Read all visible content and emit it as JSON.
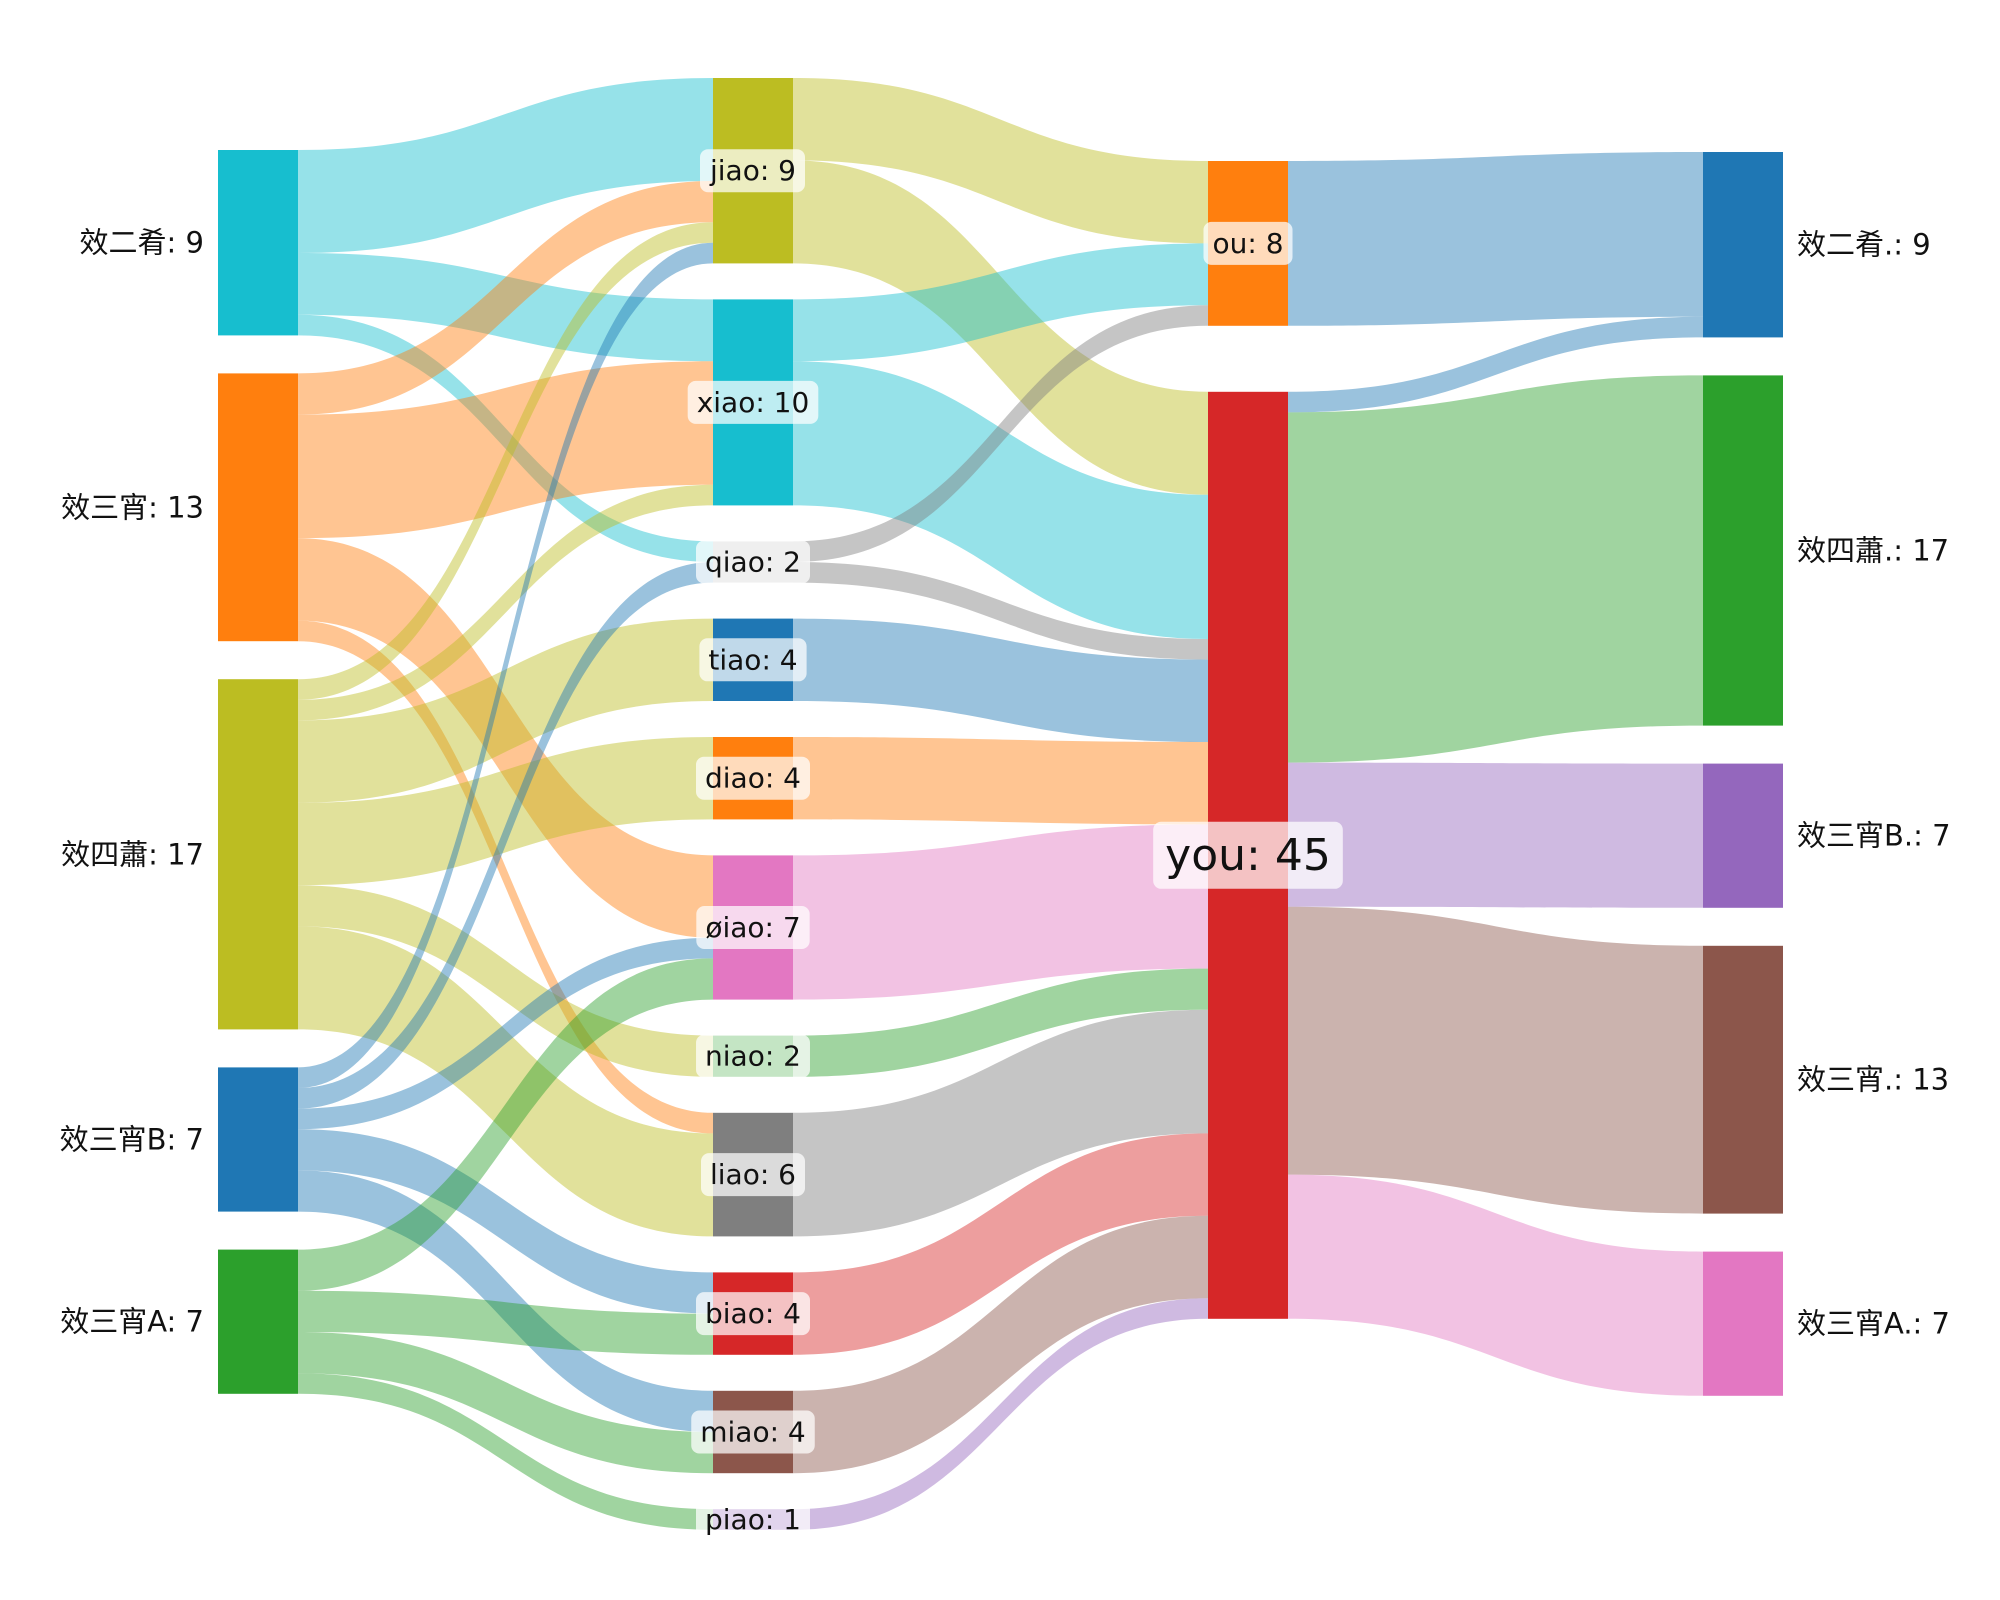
{
  "chart_data": {
    "type": "sankey",
    "title": "",
    "levels": [
      [
        "效二肴",
        "效三宵",
        "效四蕭",
        "效三宵B",
        "效三宵A"
      ],
      [
        "jiao",
        "xiao",
        "qiao",
        "tiao",
        "diao",
        "øiao",
        "niao",
        "liao",
        "biao",
        "miao",
        "piao"
      ],
      [
        "ou",
        "you"
      ],
      [
        "效二肴.",
        "效四蕭.",
        "效三宵B.",
        "效三宵.",
        "效三宵A."
      ]
    ],
    "nodes": [
      {
        "id": "效二肴",
        "label": "效二肴: 9",
        "value": 9,
        "color": "#17becf"
      },
      {
        "id": "效三宵",
        "label": "效三宵: 13",
        "value": 13,
        "color": "#ff7f0e"
      },
      {
        "id": "效四蕭",
        "label": "效四蕭: 17",
        "value": 17,
        "color": "#bcbd22"
      },
      {
        "id": "效三宵B",
        "label": "效三宵B: 7",
        "value": 7,
        "color": "#1f77b4"
      },
      {
        "id": "效三宵A",
        "label": "效三宵A: 7",
        "value": 7,
        "color": "#2ca02c"
      },
      {
        "id": "jiao",
        "label": "jiao: 9",
        "value": 9,
        "color": "#bcbd22"
      },
      {
        "id": "xiao",
        "label": "xiao: 10",
        "value": 10,
        "color": "#17becf"
      },
      {
        "id": "qiao",
        "label": "qiao: 2",
        "value": 2,
        "color": "#c7c7c7"
      },
      {
        "id": "tiao",
        "label": "tiao: 4",
        "value": 4,
        "color": "#1f77b4"
      },
      {
        "id": "diao",
        "label": "diao: 4",
        "value": 4,
        "color": "#ff7f0e"
      },
      {
        "id": "øiao",
        "label": "øiao: 7",
        "value": 7,
        "color": "#e377c2"
      },
      {
        "id": "niao",
        "label": "niao: 2",
        "value": 2,
        "color": "#2ca02c"
      },
      {
        "id": "liao",
        "label": "liao: 6",
        "value": 6,
        "color": "#7f7f7f"
      },
      {
        "id": "biao",
        "label": "biao: 4",
        "value": 4,
        "color": "#d62728"
      },
      {
        "id": "miao",
        "label": "miao: 4",
        "value": 4,
        "color": "#8c564b"
      },
      {
        "id": "piao",
        "label": "piao: 1",
        "value": 1,
        "color": "#9467bd"
      },
      {
        "id": "ou",
        "label": "ou: 8",
        "value": 8,
        "color": "#ff7f0e"
      },
      {
        "id": "you",
        "label": "you: 45",
        "value": 45,
        "color": "#d62728"
      },
      {
        "id": "效二肴.",
        "label": "效二肴.: 9",
        "value": 9,
        "color": "#1f77b4"
      },
      {
        "id": "效四蕭.",
        "label": "效四蕭.: 17",
        "value": 17,
        "color": "#2ca02c"
      },
      {
        "id": "效三宵B.",
        "label": "效三宵B.: 7",
        "value": 7,
        "color": "#9467bd"
      },
      {
        "id": "效三宵.",
        "label": "效三宵.: 13",
        "value": 13,
        "color": "#8c564b"
      },
      {
        "id": "效三宵A.",
        "label": "效三宵A.: 7",
        "value": 7,
        "color": "#e377c2"
      }
    ],
    "links": [
      {
        "source": "效二肴",
        "target": "jiao",
        "value": 5,
        "color": "#17becf"
      },
      {
        "source": "效二肴",
        "target": "xiao",
        "value": 3,
        "color": "#17becf"
      },
      {
        "source": "效二肴",
        "target": "qiao",
        "value": 1,
        "color": "#17becf"
      },
      {
        "source": "效三宵",
        "target": "jiao",
        "value": 2,
        "color": "#ff7f0e"
      },
      {
        "source": "效三宵",
        "target": "xiao",
        "value": 6,
        "color": "#ff7f0e"
      },
      {
        "source": "效三宵",
        "target": "øiao",
        "value": 4,
        "color": "#ff7f0e"
      },
      {
        "source": "效三宵",
        "target": "liao",
        "value": 1,
        "color": "#ff7f0e"
      },
      {
        "source": "效四蕭",
        "target": "jiao",
        "value": 1,
        "color": "#bcbd22"
      },
      {
        "source": "效四蕭",
        "target": "xiao",
        "value": 1,
        "color": "#bcbd22"
      },
      {
        "source": "效四蕭",
        "target": "tiao",
        "value": 4,
        "color": "#bcbd22"
      },
      {
        "source": "效四蕭",
        "target": "diao",
        "value": 4,
        "color": "#bcbd22"
      },
      {
        "source": "效四蕭",
        "target": "niao",
        "value": 2,
        "color": "#bcbd22"
      },
      {
        "source": "效四蕭",
        "target": "liao",
        "value": 5,
        "color": "#bcbd22"
      },
      {
        "source": "效三宵B",
        "target": "jiao",
        "value": 1,
        "color": "#1f77b4"
      },
      {
        "source": "效三宵B",
        "target": "qiao",
        "value": 1,
        "color": "#1f77b4"
      },
      {
        "source": "效三宵B",
        "target": "øiao",
        "value": 1,
        "color": "#1f77b4"
      },
      {
        "source": "效三宵B",
        "target": "biao",
        "value": 2,
        "color": "#1f77b4"
      },
      {
        "source": "效三宵B",
        "target": "miao",
        "value": 2,
        "color": "#1f77b4"
      },
      {
        "source": "效三宵A",
        "target": "øiao",
        "value": 2,
        "color": "#2ca02c"
      },
      {
        "source": "效三宵A",
        "target": "biao",
        "value": 2,
        "color": "#2ca02c"
      },
      {
        "source": "效三宵A",
        "target": "miao",
        "value": 2,
        "color": "#2ca02c"
      },
      {
        "source": "效三宵A",
        "target": "piao",
        "value": 1,
        "color": "#2ca02c"
      },
      {
        "source": "jiao",
        "target": "ou",
        "value": 4,
        "color": "#bcbd22"
      },
      {
        "source": "jiao",
        "target": "you",
        "value": 5,
        "color": "#bcbd22"
      },
      {
        "source": "xiao",
        "target": "ou",
        "value": 3,
        "color": "#17becf"
      },
      {
        "source": "xiao",
        "target": "you",
        "value": 7,
        "color": "#17becf"
      },
      {
        "source": "qiao",
        "target": "ou",
        "value": 1,
        "color": "#7f7f7f"
      },
      {
        "source": "qiao",
        "target": "you",
        "value": 1,
        "color": "#7f7f7f"
      },
      {
        "source": "tiao",
        "target": "you",
        "value": 4,
        "color": "#1f77b4"
      },
      {
        "source": "diao",
        "target": "you",
        "value": 4,
        "color": "#ff7f0e"
      },
      {
        "source": "øiao",
        "target": "you",
        "value": 7,
        "color": "#e377c2"
      },
      {
        "source": "niao",
        "target": "you",
        "value": 2,
        "color": "#2ca02c"
      },
      {
        "source": "liao",
        "target": "you",
        "value": 6,
        "color": "#7f7f7f"
      },
      {
        "source": "biao",
        "target": "you",
        "value": 4,
        "color": "#d62728"
      },
      {
        "source": "miao",
        "target": "you",
        "value": 4,
        "color": "#8c564b"
      },
      {
        "source": "piao",
        "target": "you",
        "value": 1,
        "color": "#9467bd"
      },
      {
        "source": "ou",
        "target": "效二肴.",
        "value": 8,
        "color": "#1f77b4"
      },
      {
        "source": "you",
        "target": "效二肴.",
        "value": 1,
        "color": "#1f77b4"
      },
      {
        "source": "you",
        "target": "效四蕭.",
        "value": 17,
        "color": "#2ca02c"
      },
      {
        "source": "you",
        "target": "效三宵B.",
        "value": 7,
        "color": "#9467bd"
      },
      {
        "source": "you",
        "target": "效三宵.",
        "value": 13,
        "color": "#8c564b"
      },
      {
        "source": "you",
        "target": "效三宵A.",
        "value": 7,
        "color": "#e377c2"
      }
    ]
  }
}
